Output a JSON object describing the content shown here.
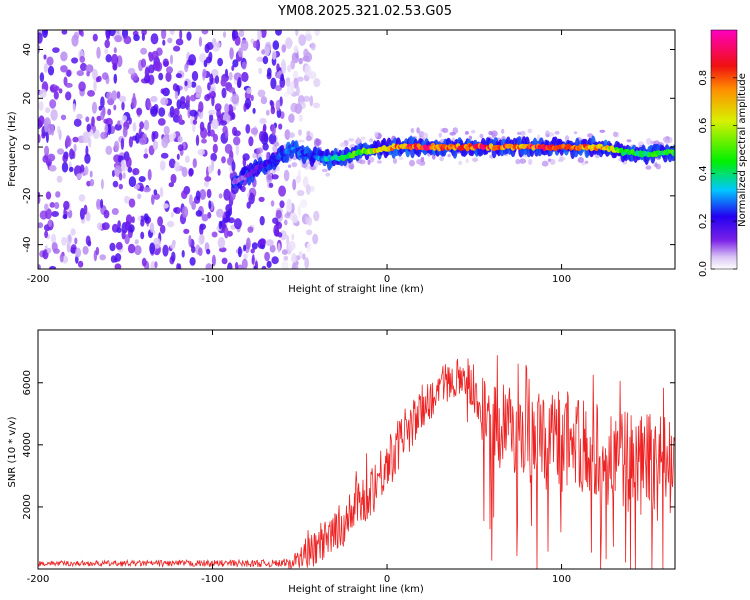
{
  "chart_data": [
    {
      "type": "heatmap",
      "title": "YM08.2025.321.02.53.G05",
      "xlabel": "Height of straight line (km)",
      "ylabel": "Frequency (Hz)",
      "xlim": [
        -200,
        165
      ],
      "ylim": [
        -50,
        48
      ],
      "xticks": [
        -200,
        -100,
        0,
        100
      ],
      "yticks": [
        -40,
        -20,
        0,
        20,
        40
      ],
      "colorbar": {
        "label": "Normalized spectral amplitude",
        "range": [
          0,
          1
        ],
        "ticks": [
          0.0,
          0.2,
          0.4,
          0.6,
          0.8
        ],
        "colors": [
          "#ffffff",
          "#d9c4f5",
          "#7b22e8",
          "#2300f0",
          "#00c8ff",
          "#00f000",
          "#d8f000",
          "#ff9000",
          "#f01010",
          "#ff00c0"
        ]
      },
      "ridge": {
        "x": [
          -85,
          -75,
          -65,
          -55,
          -45,
          -35,
          -25,
          -15,
          -5,
          5,
          20,
          40,
          60,
          80,
          100,
          115,
          125,
          135,
          150,
          165
        ],
        "y": [
          -14,
          -9,
          -5,
          -1,
          -3,
          -5,
          -4,
          -2,
          -1,
          0,
          0,
          0,
          0,
          0,
          0,
          0,
          0,
          -2,
          -3,
          -2
        ],
        "amp": [
          0.1,
          0.15,
          0.25,
          0.3,
          0.25,
          0.35,
          0.45,
          0.55,
          0.7,
          0.85,
          0.9,
          0.9,
          0.88,
          0.88,
          0.85,
          0.8,
          0.7,
          0.5,
          0.45,
          0.5
        ]
      },
      "noise_region": {
        "x": [
          -200,
          -60
        ],
        "y": [
          -50,
          48
        ],
        "amp": 0.3
      }
    },
    {
      "type": "line",
      "xlabel": "Height of straight line (km)",
      "ylabel": "SNR (10 * v/v)",
      "xlim": [
        -200,
        165
      ],
      "ylim": [
        0,
        7700
      ],
      "xticks": [
        -200,
        -100,
        0,
        100
      ],
      "yticks": [
        2000,
        4000,
        6000
      ],
      "color": "#ee2222",
      "envelope": {
        "x": [
          -200,
          -60,
          -50,
          -40,
          -30,
          -20,
          -10,
          0,
          10,
          20,
          30,
          40,
          45,
          50,
          60,
          80,
          100,
          120,
          140,
          150,
          165
        ],
        "base": [
          180,
          180,
          300,
          700,
          1100,
          1800,
          2500,
          3400,
          4300,
          5100,
          5800,
          6200,
          6300,
          5800,
          4600,
          4200,
          4000,
          3800,
          3500,
          3300,
          3200
        ],
        "spread": [
          80,
          120,
          400,
          600,
          700,
          800,
          900,
          900,
          800,
          700,
          600,
          600,
          700,
          900,
          1500,
          1500,
          1600,
          1600,
          1700,
          1700,
          1800
        ]
      }
    }
  ]
}
